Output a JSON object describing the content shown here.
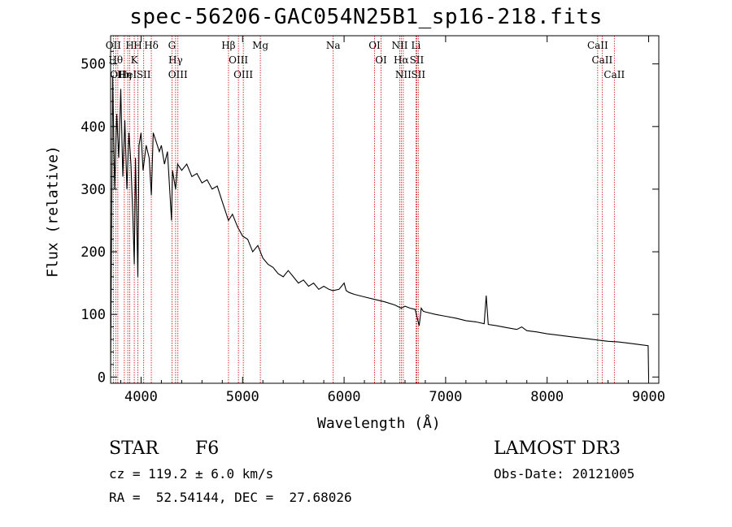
{
  "chart_data": {
    "type": "line",
    "title": "spec-56206-GAC054N25B1_sp16-218.fits",
    "xlabel": "Wavelength (Å)",
    "ylabel": "Flux (relative)",
    "xlim": [
      3700,
      9100
    ],
    "ylim": [
      -10,
      545
    ],
    "x_ticks": [
      4000,
      5000,
      6000,
      7000,
      8000,
      9000
    ],
    "x_tick_labels": [
      "4000",
      "5000",
      "6000",
      "7000",
      "8000",
      "9000"
    ],
    "y_ticks": [
      0,
      100,
      200,
      300,
      400,
      500
    ],
    "y_tick_labels": [
      "0",
      "100",
      "200",
      "300",
      "400",
      "500"
    ],
    "grid": false,
    "series": [
      {
        "name": "spectrum",
        "x": [
          3700,
          3720,
          3740,
          3760,
          3780,
          3800,
          3820,
          3840,
          3860,
          3880,
          3900,
          3920,
          3933,
          3945,
          3968,
          3980,
          4000,
          4020,
          4050,
          4080,
          4101,
          4120,
          4150,
          4180,
          4200,
          4230,
          4260,
          4300,
          4310,
          4340,
          4360,
          4400,
          4450,
          4500,
          4550,
          4600,
          4650,
          4700,
          4750,
          4800,
          4861,
          4900,
          4950,
          5000,
          5050,
          5100,
          5150,
          5200,
          5250,
          5300,
          5350,
          5400,
          5450,
          5500,
          5550,
          5600,
          5650,
          5700,
          5750,
          5800,
          5850,
          5890,
          5950,
          6000,
          6020,
          6050,
          6100,
          6200,
          6300,
          6400,
          6500,
          6563,
          6600,
          6650,
          6700,
          6740,
          6760,
          6780,
          6800,
          6900,
          7000,
          7100,
          7200,
          7300,
          7380,
          7400,
          7420,
          7500,
          7600,
          7700,
          7750,
          7800,
          7900,
          8000,
          8100,
          8200,
          8300,
          8400,
          8500,
          8600,
          8700,
          8800,
          8900,
          8995,
          9000
        ],
        "y": [
          10,
          480,
          300,
          420,
          350,
          460,
          320,
          410,
          300,
          390,
          340,
          250,
          180,
          350,
          160,
          370,
          390,
          330,
          370,
          350,
          290,
          390,
          375,
          360,
          370,
          340,
          360,
          250,
          330,
          300,
          340,
          330,
          340,
          320,
          325,
          310,
          315,
          300,
          305,
          280,
          250,
          260,
          240,
          225,
          220,
          200,
          210,
          190,
          180,
          175,
          165,
          160,
          170,
          160,
          150,
          155,
          145,
          150,
          140,
          145,
          140,
          138,
          140,
          150,
          138,
          135,
          132,
          128,
          124,
          120,
          115,
          110,
          113,
          110,
          108,
          82,
          110,
          105,
          104,
          100,
          97,
          94,
          90,
          88,
          85,
          130,
          84,
          82,
          79,
          76,
          80,
          74,
          72,
          69,
          67,
          65,
          63,
          61,
          59,
          57,
          56,
          54,
          52,
          50,
          0
        ]
      }
    ],
    "line_markers": [
      {
        "wave": 3727,
        "label": "OII"
      },
      {
        "wave": 3750,
        "label": "Hθ"
      },
      {
        "wave": 3771,
        "label": "OII"
      },
      {
        "wave": 3835,
        "label": "Hη"
      },
      {
        "wave": 3869,
        "label": "HeI"
      },
      {
        "wave": 3889,
        "label": "H"
      },
      {
        "wave": 3933,
        "label": "K"
      },
      {
        "wave": 3968,
        "label": "H"
      },
      {
        "wave": 4026,
        "label": "SII"
      },
      {
        "wave": 4101,
        "label": "Hδ"
      },
      {
        "wave": 4304,
        "label": "G"
      },
      {
        "wave": 4340,
        "label": "Hγ"
      },
      {
        "wave": 4363,
        "label": "OIII"
      },
      {
        "wave": 4861,
        "label": "Hβ"
      },
      {
        "wave": 4959,
        "label": "OIII"
      },
      {
        "wave": 5007,
        "label": "OIII"
      },
      {
        "wave": 5175,
        "label": "Mg"
      },
      {
        "wave": 5893,
        "label": "Na"
      },
      {
        "wave": 6300,
        "label": "OI"
      },
      {
        "wave": 6364,
        "label": "OI"
      },
      {
        "wave": 6548,
        "label": "NII"
      },
      {
        "wave": 6563,
        "label": "Hα"
      },
      {
        "wave": 6583,
        "label": "NII"
      },
      {
        "wave": 6708,
        "label": "Li"
      },
      {
        "wave": 6716,
        "label": "SII"
      },
      {
        "wave": 6731,
        "label": "SII"
      },
      {
        "wave": 8498,
        "label": "CaII"
      },
      {
        "wave": 8542,
        "label": "CaII"
      },
      {
        "wave": 8662,
        "label": "CaII"
      }
    ]
  },
  "info": {
    "object_class": "STAR",
    "subclass": "F6",
    "survey": "LAMOST DR3",
    "redshift": "cz = 119.2 ± 6.0 km/s",
    "obs_date": "Obs-Date: 20121005",
    "coords": "RA =  52.54144, DEC =  27.68026"
  },
  "colors": {
    "spectrum": "#000000",
    "marker": "#cc0000",
    "axis": "#000000"
  }
}
